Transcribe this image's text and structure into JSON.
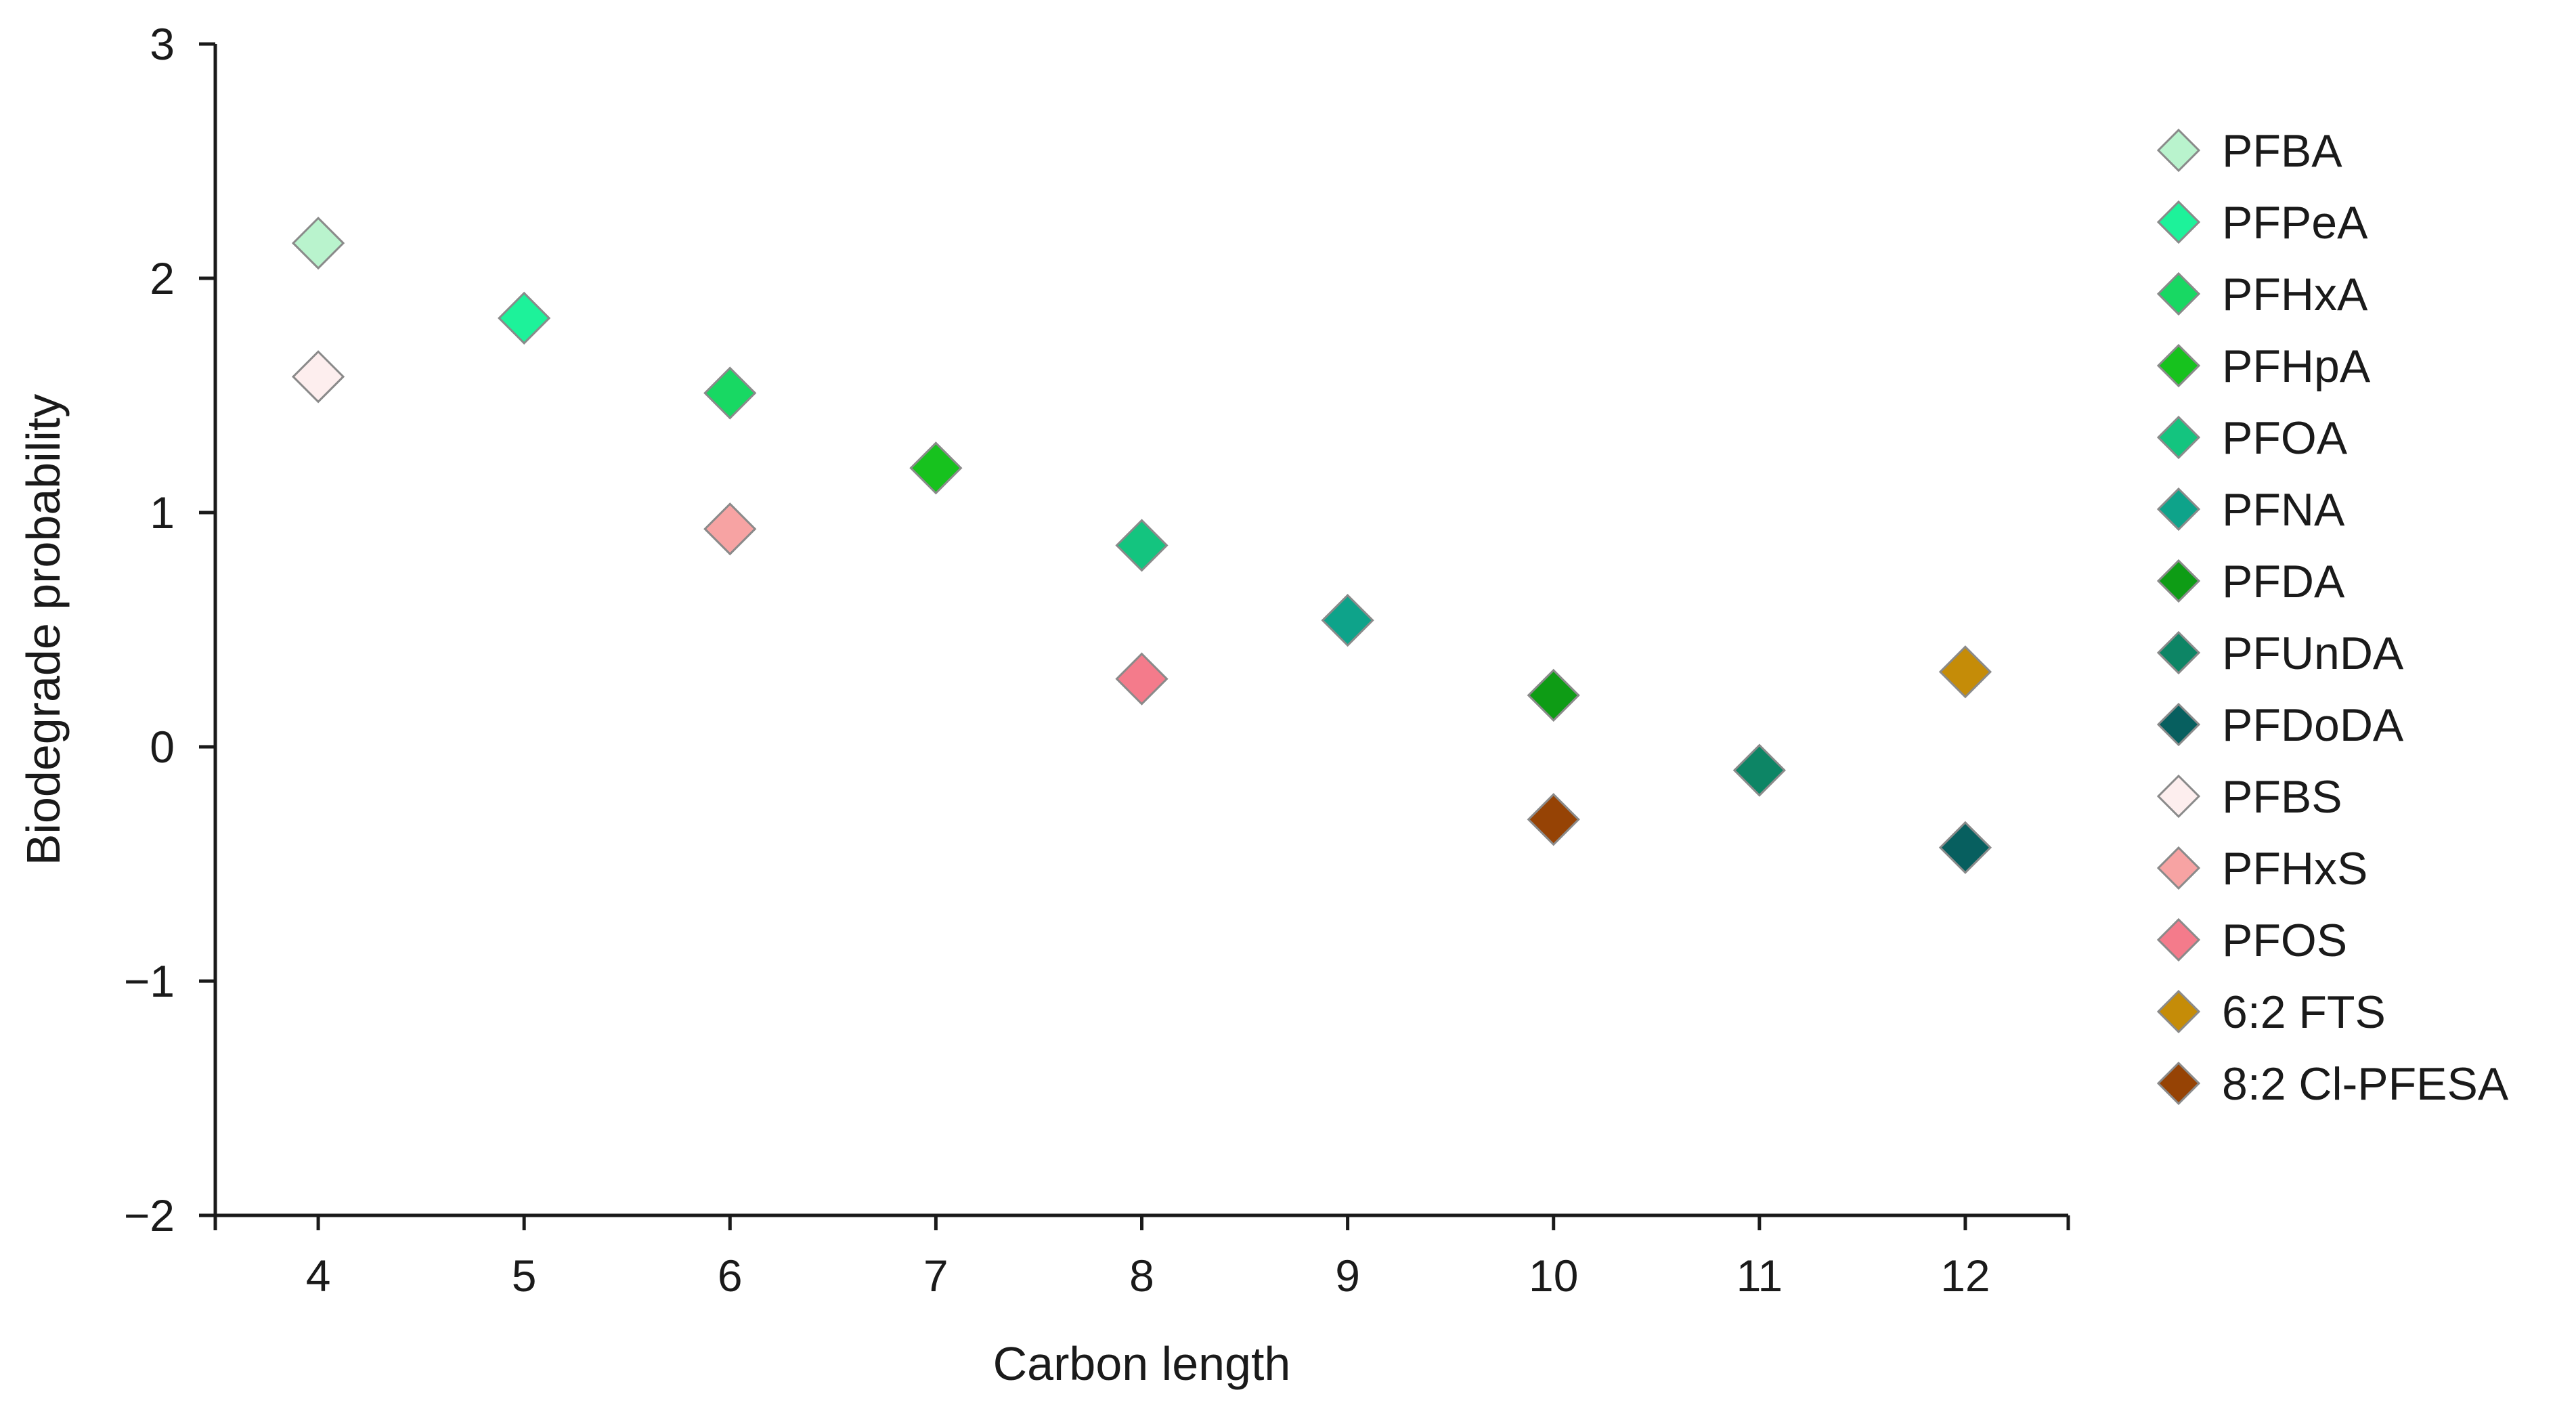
{
  "chart_data": {
    "type": "scatter",
    "title": "",
    "xlabel": "Carbon length",
    "ylabel": "Biodegrade probability",
    "xlim": [
      3.5,
      12.5
    ],
    "ylim": [
      -2,
      3
    ],
    "xticks": [
      4,
      5,
      6,
      7,
      8,
      9,
      10,
      11,
      12
    ],
    "yticks": [
      3,
      2,
      1,
      0,
      -1,
      -2
    ],
    "ytick_labels": [
      "3",
      "2",
      "1",
      "0",
      "−1",
      "−2"
    ],
    "grid": false,
    "legend_position": "right",
    "marker": "diamond",
    "series": [
      {
        "name": "PFBA",
        "color": "#b9f3cd",
        "points": [
          {
            "x": 4,
            "y": 2.15
          }
        ]
      },
      {
        "name": "PFPeA",
        "color": "#1df29a",
        "points": [
          {
            "x": 5,
            "y": 1.83
          }
        ]
      },
      {
        "name": "PFHxA",
        "color": "#18d863",
        "points": [
          {
            "x": 6,
            "y": 1.51
          }
        ]
      },
      {
        "name": "PFHpA",
        "color": "#17c21e",
        "points": [
          {
            "x": 7,
            "y": 1.19
          }
        ]
      },
      {
        "name": "PFOA",
        "color": "#14c47f",
        "points": [
          {
            "x": 8,
            "y": 0.86
          }
        ]
      },
      {
        "name": "PFNA",
        "color": "#0ea38a",
        "points": [
          {
            "x": 9,
            "y": 0.54
          }
        ]
      },
      {
        "name": "PFDA",
        "color": "#0e9c15",
        "points": [
          {
            "x": 10,
            "y": 0.22
          }
        ]
      },
      {
        "name": "PFUnDA",
        "color": "#0d8565",
        "points": [
          {
            "x": 11,
            "y": -0.1
          }
        ]
      },
      {
        "name": "PFDoDA",
        "color": "#075f5f",
        "points": [
          {
            "x": 12,
            "y": -0.43
          }
        ]
      },
      {
        "name": "PFBS",
        "color": "#fdeeee",
        "points": [
          {
            "x": 4,
            "y": 1.58
          }
        ]
      },
      {
        "name": "PFHxS",
        "color": "#f7a3a3",
        "points": [
          {
            "x": 6,
            "y": 0.93
          }
        ]
      },
      {
        "name": "PFOS",
        "color": "#f47b8b",
        "points": [
          {
            "x": 8,
            "y": 0.29
          }
        ]
      },
      {
        "name": "6:2 FTS",
        "color": "#c58c08",
        "points": [
          {
            "x": 12,
            "y": 0.32
          }
        ]
      },
      {
        "name": "8:2 Cl-PFESA",
        "color": "#964305",
        "points": [
          {
            "x": 10,
            "y": -0.31
          }
        ]
      }
    ]
  }
}
